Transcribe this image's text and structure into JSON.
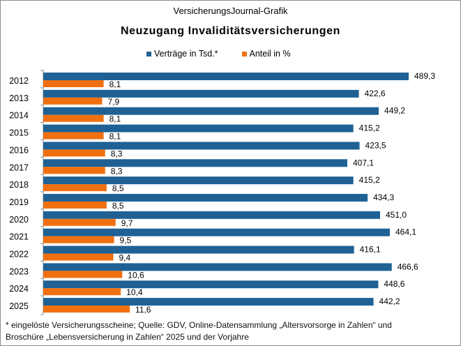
{
  "header": {
    "source_label": "VersicherungsJournal-Grafik",
    "title": "Neuzugang Invaliditätsversicherungen"
  },
  "colors": {
    "vertraege": "#1f6194",
    "anteil": "#f0700f"
  },
  "chart_data": {
    "type": "bar",
    "orientation": "horizontal",
    "title": "Neuzugang Invaliditätsversicherungen",
    "categories": [
      "2012",
      "2013",
      "2014",
      "2015",
      "2016",
      "2017",
      "2018",
      "2019",
      "2020",
      "2021",
      "2022",
      "2023",
      "2024",
      "2025"
    ],
    "series": [
      {
        "name": "Verträge in Tsd.*",
        "values": [
          489.3,
          422.6,
          449.2,
          415.2,
          423.5,
          407.1,
          415.2,
          434.3,
          451.0,
          464.1,
          416.1,
          466.6,
          448.6,
          442.2
        ]
      },
      {
        "name": "Anteil in %",
        "values": [
          8.1,
          7.9,
          8.1,
          8.1,
          8.3,
          8.3,
          8.5,
          8.5,
          9.7,
          9.5,
          9.4,
          10.6,
          10.4,
          11.6
        ]
      }
    ],
    "data_labels": true,
    "decimal_separator": ",",
    "legend_position": "top",
    "grid": false
  },
  "footnote": {
    "line1": "* eingelöste Versicherungsscheine;  Quelle: GDV, Online-Datensammlung  „Altersvorsorge  in Zahlen“  und",
    "line2": "Broschüre „Lebensversicherung  in Zahlen“  2025 und der Vorjahre"
  }
}
